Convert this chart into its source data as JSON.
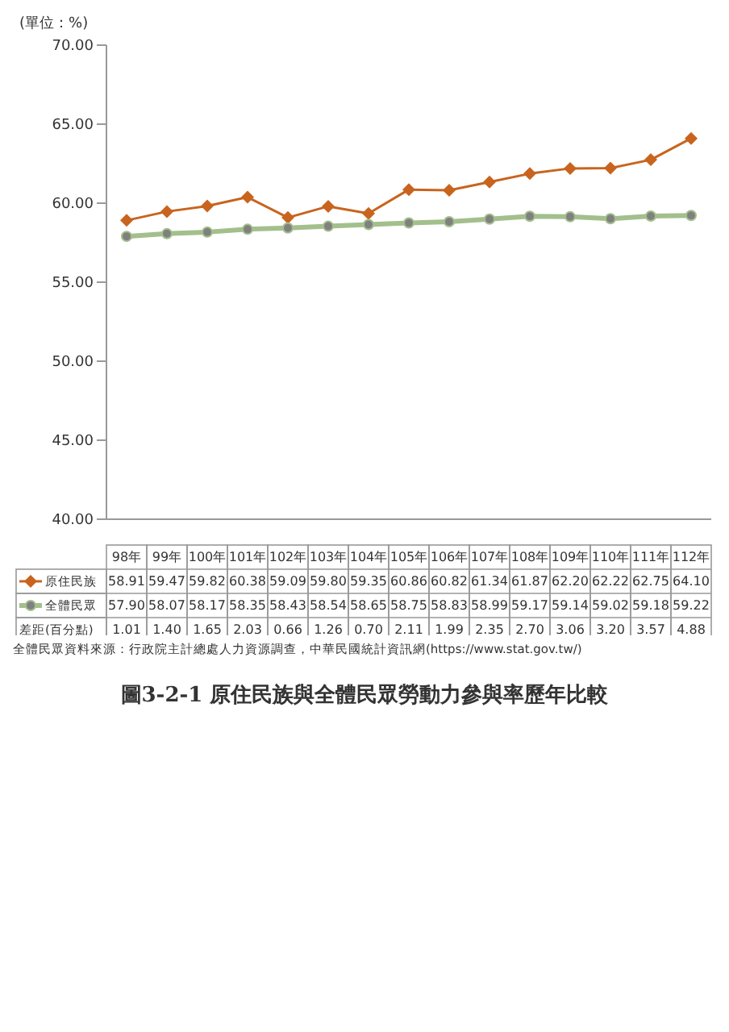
{
  "chart_data": {
    "type": "line",
    "title": "圖3-2-1 原住民族與全體民眾勞動力參與率歷年比較",
    "ylabel": "(單位：%)",
    "categories": [
      "98年",
      "99年",
      "100年",
      "101年",
      "102年",
      "103年",
      "104年",
      "105年",
      "106年",
      "107年",
      "108年",
      "109年",
      "110年",
      "111年",
      "112年"
    ],
    "series": [
      {
        "name": "原住民族",
        "color": "#c8641e",
        "marker": "diamond",
        "values": [
          58.91,
          59.47,
          59.82,
          60.38,
          59.09,
          59.8,
          59.35,
          60.86,
          60.82,
          61.34,
          61.87,
          62.2,
          62.22,
          62.75,
          64.1
        ],
        "value_labels": [
          "58.91",
          "59.47",
          "59.82",
          "60.38",
          "59.09",
          "59.80",
          "59.35",
          "60.86",
          "60.82",
          "61.34",
          "61.87",
          "62.20",
          "62.22",
          "62.75",
          "64.10"
        ]
      },
      {
        "name": "全體民眾",
        "color": "#a3bf8c",
        "marker": "circle",
        "values": [
          57.9,
          58.07,
          58.17,
          58.35,
          58.43,
          58.54,
          58.65,
          58.75,
          58.83,
          58.99,
          59.17,
          59.14,
          59.02,
          59.18,
          59.22
        ],
        "value_labels": [
          "57.90",
          "58.07",
          "58.17",
          "58.35",
          "58.43",
          "58.54",
          "58.65",
          "58.75",
          "58.83",
          "58.99",
          "59.17",
          "59.14",
          "59.02",
          "59.18",
          "59.22"
        ]
      },
      {
        "name": "差距(百分點)",
        "type": "other",
        "values": [
          null,
          null,
          null,
          null,
          null,
          null,
          null,
          null,
          null,
          null,
          null,
          null,
          null,
          null,
          null
        ],
        "value_labels": [
          "1.01",
          "1.40",
          "1.65",
          "2.03",
          "0.66",
          "1.26",
          "0.70",
          "2.11",
          "1.99",
          "2.35",
          "2.70",
          "3.06",
          "3.20",
          "3.57",
          "4.88"
        ]
      }
    ],
    "ylim": [
      40,
      70
    ],
    "yticks": [
      {
        "value": 40,
        "label": "40.00"
      },
      {
        "value": 45,
        "label": "45.00"
      },
      {
        "value": 50,
        "label": "50.00"
      },
      {
        "value": 55,
        "label": "55.00"
      },
      {
        "value": 60,
        "label": "60.00"
      },
      {
        "value": 65,
        "label": "65.00"
      },
      {
        "value": 70,
        "label": "70.00"
      }
    ],
    "legend": "bottom left",
    "grid": false,
    "annotations": [
      "全體民眾資料來源：行政院主計總處人力資源調查，中華民國統計資訊網(https://www.stat.gov.tw/)"
    ]
  }
}
